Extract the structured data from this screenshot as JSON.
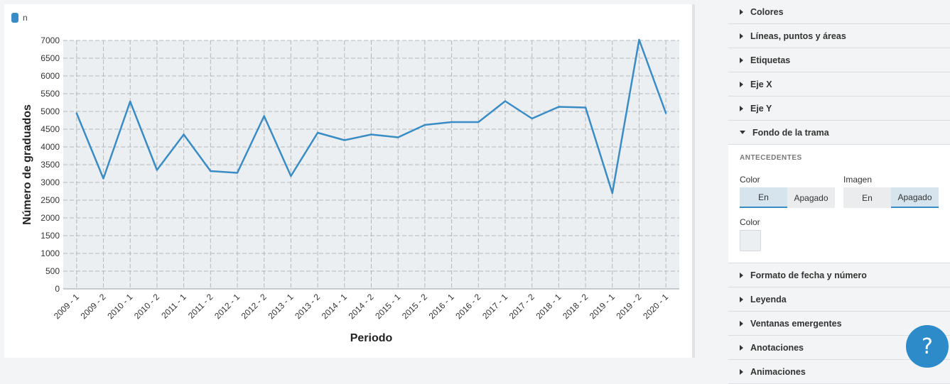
{
  "legend": {
    "label": "n"
  },
  "chart_data": {
    "type": "line",
    "xlabel": "Periodo",
    "ylabel": "Número de graduados",
    "ylim": [
      0,
      7000
    ],
    "yticks": [
      0,
      500,
      1000,
      1500,
      2000,
      2500,
      3000,
      3500,
      4000,
      4500,
      5000,
      5500,
      6000,
      6500,
      7000
    ],
    "grid": true,
    "legend_position": "top-left",
    "categories": [
      "2009 - 1",
      "2009 - 2",
      "2010 - 1",
      "2010 - 2",
      "2011 - 1",
      "2011 - 2",
      "2012 - 1",
      "2012 - 2",
      "2013 - 1",
      "2013 - 2",
      "2014 - 1",
      "2014 - 2",
      "2015 - 1",
      "2015 - 2",
      "2016 - 1",
      "2016 - 2",
      "2017 - 1",
      "2017 - 2",
      "2018 - 1",
      "2018 - 2",
      "2019 - 1",
      "2019 - 2",
      "2020 - 1"
    ],
    "series": [
      {
        "name": "n",
        "color": "#3a8cc4",
        "values": [
          4950,
          3110,
          5280,
          3350,
          4350,
          3320,
          3270,
          4870,
          3180,
          4400,
          4190,
          4350,
          4270,
          4620,
          4700,
          4700,
          5290,
          4800,
          5130,
          5110,
          2700,
          7020,
          4950
        ]
      }
    ],
    "plot_background": "#eceff1"
  },
  "panel": {
    "items_top": [
      "Colores",
      "Líneas, puntos y áreas",
      "Etiquetas",
      "Eje X",
      "Eje Y"
    ],
    "open_item": "Fondo de la trama",
    "section_title": "ANTECEDENTES",
    "color_label": "Color",
    "image_label": "Imagen",
    "color_toggle": {
      "on": "En",
      "off": "Apagado",
      "active": "on"
    },
    "image_toggle": {
      "on": "En",
      "off": "Apagado",
      "active": "off"
    },
    "color_swatch_label": "Color",
    "swatch_color": "#eceff1",
    "items_bottom": [
      "Formato de fecha y número",
      "Leyenda",
      "Ventanas emergentes",
      "Anotaciones",
      "Animaciones"
    ]
  },
  "help": {
    "label": "?"
  }
}
